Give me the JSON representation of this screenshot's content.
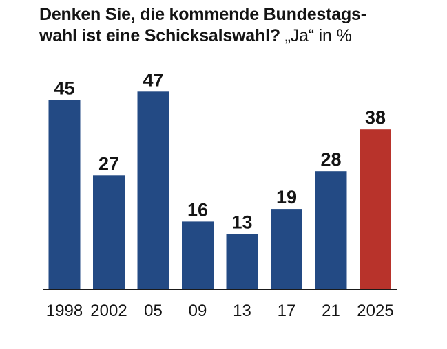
{
  "chart_data": {
    "type": "bar",
    "title_line1": "Denken Sie, die kommende Bundestags-",
    "title_line2": "wahl ist eine Schicksalswahl?",
    "title_unit": "„Ja“ in %",
    "categories": [
      "1998",
      "2002",
      "05",
      "09",
      "13",
      "17",
      "21",
      "2025"
    ],
    "values": [
      45,
      27,
      47,
      16,
      13,
      19,
      28,
      38
    ],
    "xlabel": "",
    "ylabel": "",
    "ylim": [
      0,
      50
    ],
    "grid": false,
    "legend": "none",
    "colors": {
      "default": "#234a84",
      "highlight": "#b8332b",
      "axis": "#1a1a1a"
    },
    "highlight_index": 7
  }
}
